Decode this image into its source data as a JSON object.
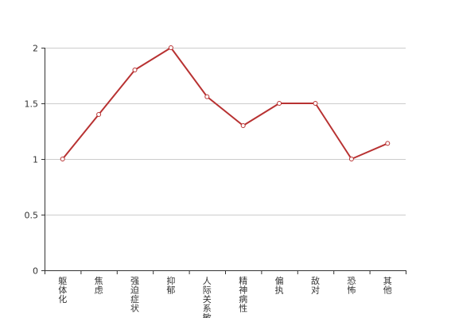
{
  "chart_data": {
    "type": "line",
    "categories": [
      "躯体化",
      "焦虑",
      "强迫症状",
      "抑郁",
      "人际关系敏感",
      "精神病性",
      "偏执",
      "敌对",
      "恐怖",
      "其他"
    ],
    "series": [
      {
        "values": [
          1.0,
          1.4,
          1.8,
          2.0,
          1.56,
          1.3,
          1.5,
          1.5,
          1.0,
          1.14
        ],
        "color": "#b83232"
      }
    ],
    "ylim": [
      0,
      2
    ],
    "yticks": [
      0,
      0.5,
      1,
      1.5,
      2
    ],
    "ytick_labels": [
      "0",
      "0.5",
      "1",
      "1.5",
      "2"
    ],
    "grid": true,
    "legend": "none",
    "title": "",
    "xlabel": "",
    "ylabel": ""
  }
}
